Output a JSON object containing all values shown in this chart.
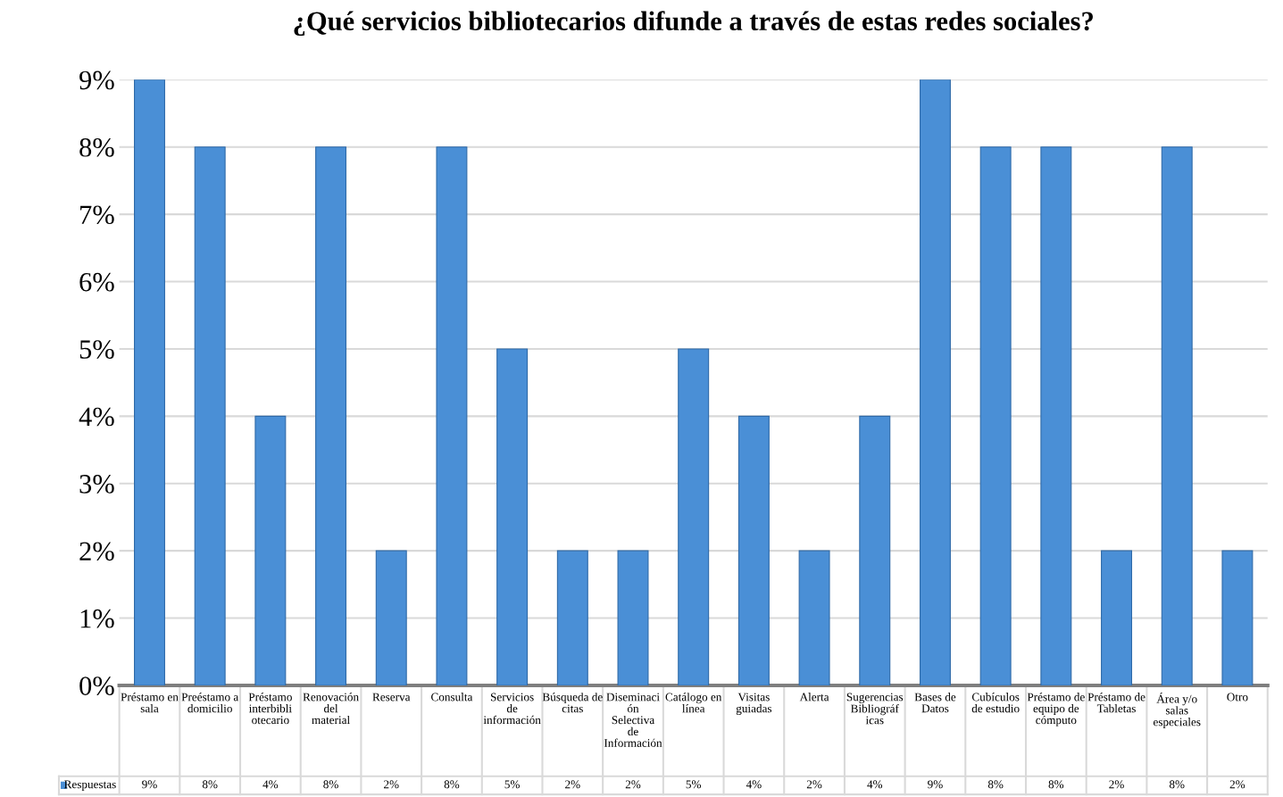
{
  "chart_data": {
    "type": "bar",
    "title": "¿Qué servicios bibliotecarios difunde a través de estas redes sociales?",
    "categories": [
      "Préstamo en sala",
      "Preéstamo a domicilio",
      "Préstamo interbibliotecario",
      "Renovación del material",
      "Reserva",
      "Consulta",
      "Servicios de información",
      "Búsqueda de citas",
      "Diseminación Selectiva de Información",
      "Catálogo en línea",
      "Visitas guiadas",
      "Alerta",
      "Sugerencias Bibliográficas",
      "Bases de Datos",
      "Cubículos de estudio",
      "Préstamo de equipo de cómputo",
      "Préstamo de Tabletas",
      "Área y/o salas especiales",
      "Otro"
    ],
    "series": [
      {
        "name": "Respuestas",
        "color": "#4a8fd6",
        "values": [
          9,
          8,
          4,
          8,
          2,
          8,
          5,
          2,
          2,
          5,
          4,
          2,
          4,
          9,
          8,
          8,
          2,
          8,
          2
        ],
        "value_labels": [
          "9%",
          "8%",
          "4%",
          "8%",
          "2%",
          "8%",
          "5%",
          "2%",
          "2%",
          "5%",
          "4%",
          "2%",
          "4%",
          "9%",
          "8%",
          "8%",
          "2%",
          "8%",
          "2%"
        ]
      }
    ],
    "ylim": [
      0,
      9
    ],
    "yticks": [
      {
        "value": 0,
        "label": "0%"
      },
      {
        "value": 1,
        "label": "1%"
      },
      {
        "value": 2,
        "label": "2%"
      },
      {
        "value": 3,
        "label": "3%"
      },
      {
        "value": 4,
        "label": "4%"
      },
      {
        "value": 5,
        "label": "5%"
      },
      {
        "value": 6,
        "label": "6%"
      },
      {
        "value": 7,
        "label": "7%"
      },
      {
        "value": 8,
        "label": "8%"
      },
      {
        "value": 9,
        "label": "9%"
      }
    ],
    "grid": "y",
    "legend": "bottom"
  }
}
